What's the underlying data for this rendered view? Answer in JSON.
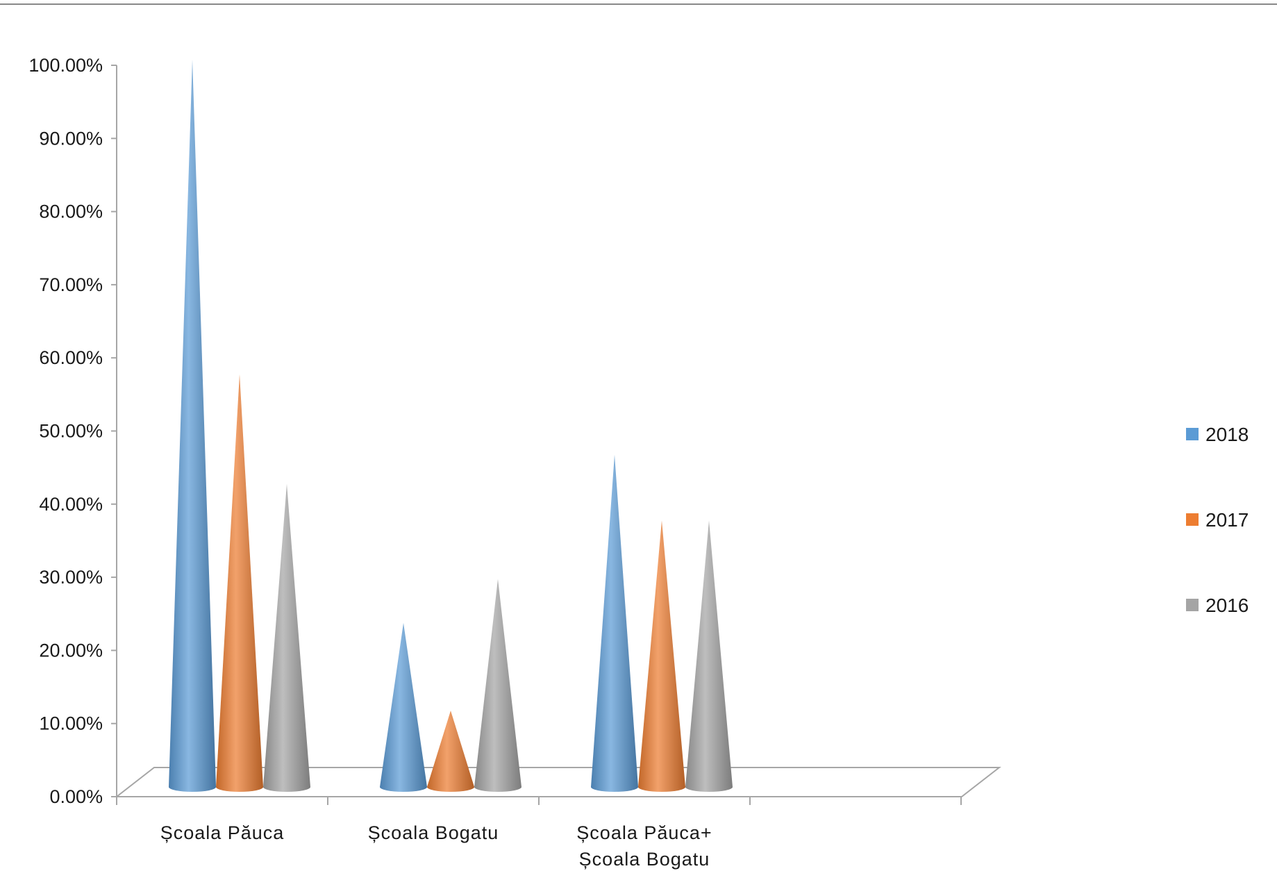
{
  "chart_data": {
    "type": "bar",
    "shape": "cone-3d",
    "title": "",
    "xlabel": "",
    "ylabel": "",
    "ylim": [
      0,
      1.0
    ],
    "y_tick_labels": [
      "0.00%",
      "10.00%",
      "20.00%",
      "30.00%",
      "40.00%",
      "50.00%",
      "60.00%",
      "70.00%",
      "80.00%",
      "90.00%",
      "100.00%"
    ],
    "categories": [
      [
        "Școala Păuca"
      ],
      [
        "Școala Bogatu"
      ],
      [
        "Școala Păuca+",
        "Școala Bogatu"
      ]
    ],
    "series": [
      {
        "name": "2018",
        "color": "#5b9bd5",
        "values": [
          1.0,
          0.23,
          0.46
        ]
      },
      {
        "name": "2017",
        "color": "#ed7d31",
        "values": [
          0.57,
          0.11,
          0.37
        ]
      },
      {
        "name": "2016",
        "color": "#a5a5a5",
        "values": [
          0.42,
          0.29,
          0.37
        ]
      }
    ],
    "legend_position": "right",
    "grid": false
  }
}
